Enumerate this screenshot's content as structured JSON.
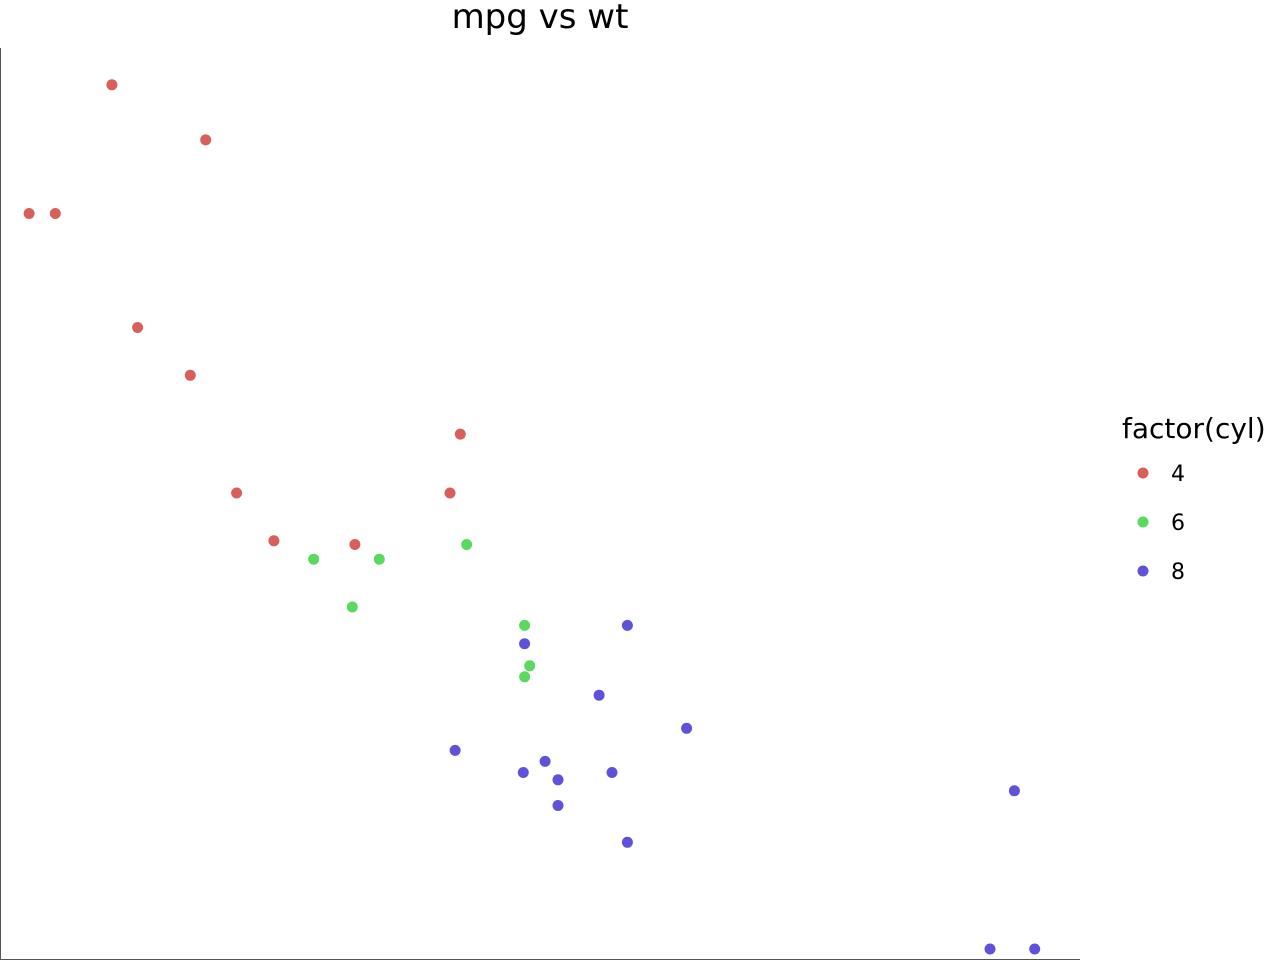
{
  "chart_data": {
    "type": "scatter",
    "title": "mpg vs wt",
    "xlabel": "",
    "ylabel": "",
    "xlim": [
      1.4,
      5.6
    ],
    "ylim": [
      10.1,
      34.9
    ],
    "grid": false,
    "legend": {
      "title": "factor(cyl)",
      "placement": "right"
    },
    "series": [
      {
        "name": "4",
        "color": "#d9605a",
        "points": [
          {
            "x": 1.835,
            "y": 33.9
          },
          {
            "x": 2.2,
            "y": 32.4
          },
          {
            "x": 1.615,
            "y": 30.4
          },
          {
            "x": 1.513,
            "y": 30.4
          },
          {
            "x": 1.935,
            "y": 27.3
          },
          {
            "x": 2.14,
            "y": 26.0
          },
          {
            "x": 3.19,
            "y": 24.4
          },
          {
            "x": 2.32,
            "y": 22.8
          },
          {
            "x": 3.15,
            "y": 22.8
          },
          {
            "x": 2.465,
            "y": 21.5
          },
          {
            "x": 2.78,
            "y": 21.4
          }
        ]
      },
      {
        "name": "6",
        "color": "#5ad95f",
        "points": [
          {
            "x": 2.62,
            "y": 21.0
          },
          {
            "x": 2.875,
            "y": 21.0
          },
          {
            "x": 3.215,
            "y": 21.4
          },
          {
            "x": 2.77,
            "y": 19.7
          },
          {
            "x": 3.44,
            "y": 19.2
          },
          {
            "x": 3.46,
            "y": 18.1
          },
          {
            "x": 3.44,
            "y": 17.8
          }
        ]
      },
      {
        "name": "8",
        "color": "#5f52d9",
        "points": [
          {
            "x": 3.44,
            "y": 18.7
          },
          {
            "x": 3.84,
            "y": 19.2
          },
          {
            "x": 3.73,
            "y": 17.3
          },
          {
            "x": 4.07,
            "y": 16.4
          },
          {
            "x": 3.17,
            "y": 15.8
          },
          {
            "x": 3.435,
            "y": 15.2
          },
          {
            "x": 3.52,
            "y": 15.5
          },
          {
            "x": 3.57,
            "y": 15.0
          },
          {
            "x": 3.78,
            "y": 15.2
          },
          {
            "x": 3.57,
            "y": 14.3
          },
          {
            "x": 3.84,
            "y": 13.3
          },
          {
            "x": 5.345,
            "y": 14.7
          },
          {
            "x": 5.25,
            "y": 10.4
          },
          {
            "x": 5.424,
            "y": 10.4
          }
        ]
      }
    ]
  }
}
